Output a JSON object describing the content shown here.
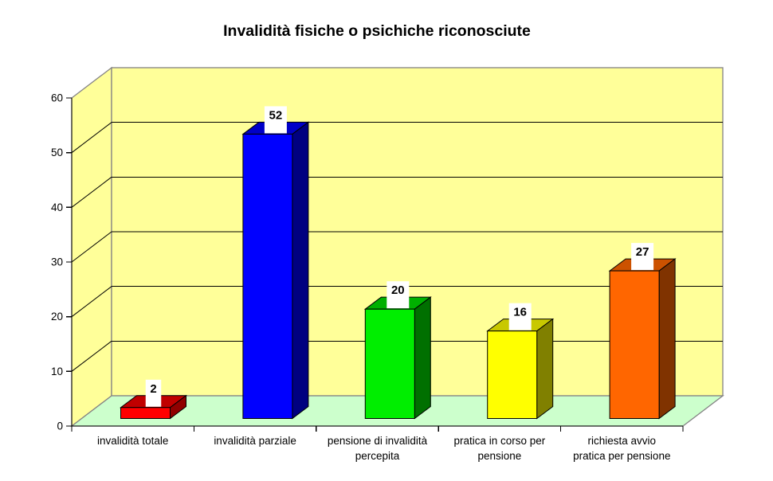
{
  "chart_data": {
    "type": "bar",
    "projection": "3d",
    "title": "Invalidità fisiche o psichiche riconosciute",
    "xlabel": "",
    "ylabel": "",
    "legend": "none",
    "grid": true,
    "ylim": [
      0,
      60
    ],
    "ytick_step": 10,
    "ytick_labels": [
      "0",
      "10",
      "20",
      "30",
      "40",
      "50",
      "60"
    ],
    "categories": [
      "invalidità totale",
      "invalidità parziale",
      "pensione di invalidità percepita",
      "pratica in corso per pensione",
      "richiesta avvio pratica per pensione"
    ],
    "category_label_lines": [
      [
        "invalidità totale"
      ],
      [
        "invalidità parziale"
      ],
      [
        "pensione di invalidità",
        "percepita"
      ],
      [
        "pratica in corso per",
        "pensione"
      ],
      [
        "richiesta avvio",
        "pratica per pensione"
      ]
    ],
    "values": [
      2,
      52,
      20,
      16,
      27
    ],
    "data_labels": [
      "2",
      "52",
      "20",
      "16",
      "27"
    ],
    "bar_colors": [
      {
        "name": "red",
        "front": "#FF0000",
        "top": "#C00000",
        "side": "#900000"
      },
      {
        "name": "blue",
        "front": "#0000FF",
        "top": "#0000C8",
        "side": "#000080"
      },
      {
        "name": "green",
        "front": "#00EE00",
        "top": "#00B000",
        "side": "#007000"
      },
      {
        "name": "yellow",
        "front": "#FFFF00",
        "top": "#C8C800",
        "side": "#808000"
      },
      {
        "name": "orange",
        "front": "#FF6600",
        "top": "#CC5200",
        "side": "#803300"
      }
    ],
    "colors": {
      "background": "#FFFFFF",
      "wall": "#FFFF99",
      "floor": "#CCFFCC",
      "wall_border": "#848284",
      "gridline": "#000000",
      "axis": "#000000",
      "data_label_background": "#FFFFFF",
      "text": "#000000"
    }
  }
}
